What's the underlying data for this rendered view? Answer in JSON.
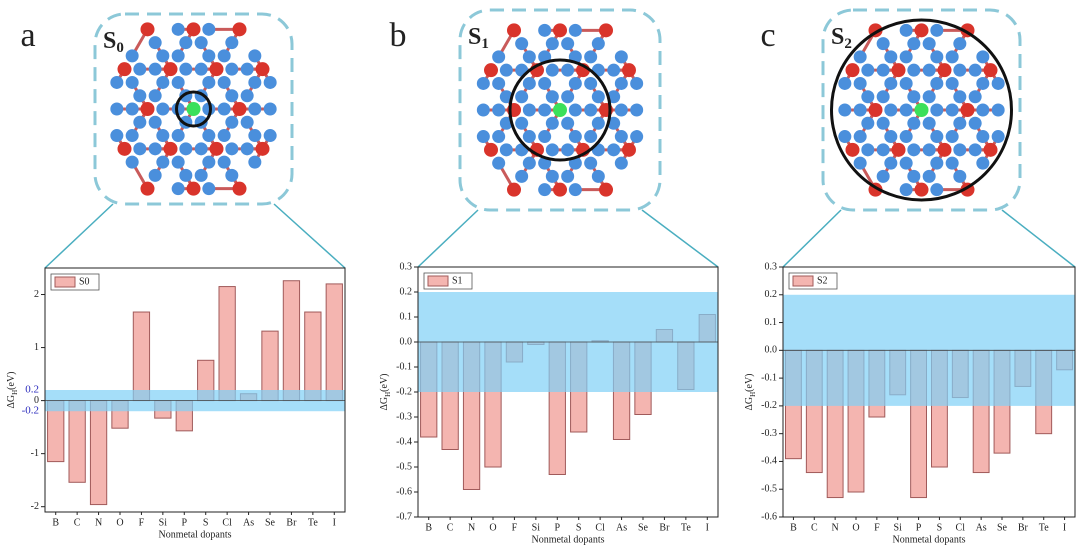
{
  "chart_data": [
    {
      "type": "bar",
      "panel": "a",
      "structure_label": "S",
      "structure_sub": "0",
      "categories": [
        "B",
        "C",
        "N",
        "O",
        "F",
        "Si",
        "P",
        "S",
        "Cl",
        "As",
        "Se",
        "Br",
        "Te",
        "I"
      ],
      "series": [
        {
          "name": "S0",
          "color": "#f4b5b0",
          "values": [
            -1.15,
            -1.54,
            -1.96,
            -0.52,
            1.67,
            -0.33,
            -0.57,
            0.76,
            2.15,
            0.13,
            1.31,
            2.26,
            1.67,
            2.2
          ]
        }
      ],
      "ylim": [
        -2.1,
        2.5
      ],
      "yticks": [
        -2,
        -1,
        0,
        1,
        2
      ],
      "band": [
        -0.2,
        0.2
      ],
      "band_color": "#7fd0f7",
      "band_ticks": [
        0.2,
        -0.2
      ],
      "xlabel": "Nonmetal dopants",
      "ylabel": "ΔG",
      "ylabel_sub": "H",
      "ylabel_unit": "(eV)"
    },
    {
      "type": "bar",
      "panel": "b",
      "structure_label": "S",
      "structure_sub": "1",
      "categories": [
        "B",
        "C",
        "N",
        "O",
        "F",
        "Si",
        "P",
        "S",
        "Cl",
        "As",
        "Se",
        "Br",
        "Te",
        "I"
      ],
      "series": [
        {
          "name": "S1",
          "color": "#f4b5b0",
          "values": [
            -0.38,
            -0.43,
            -0.59,
            -0.5,
            -0.08,
            -0.01,
            -0.53,
            -0.36,
            0.005,
            -0.39,
            -0.29,
            0.05,
            -0.19,
            0.11
          ]
        }
      ],
      "ylim": [
        -0.7,
        0.3
      ],
      "yticks": [
        0.3,
        0.2,
        0.1,
        {
          "value": 0,
          "label": "0.0"
        },
        -0.1,
        -0.2,
        -0.3,
        -0.4,
        -0.5,
        -0.6,
        -0.7
      ],
      "band": [
        -0.2,
        0.2
      ],
      "band_color": "#7fd0f7",
      "xlabel": "Nonmetal dopants",
      "ylabel": "ΔG",
      "ylabel_sub": "H",
      "ylabel_unit": "(eV)"
    },
    {
      "type": "bar",
      "panel": "c",
      "structure_label": "S",
      "structure_sub": "2",
      "categories": [
        "B",
        "C",
        "N",
        "O",
        "F",
        "Si",
        "P",
        "S",
        "Cl",
        "As",
        "Se",
        "Br",
        "Te",
        "I"
      ],
      "series": [
        {
          "name": "S2",
          "color": "#f4b5b0",
          "values": [
            -0.39,
            -0.44,
            -0.53,
            -0.51,
            -0.24,
            -0.16,
            -0.53,
            -0.42,
            -0.17,
            -0.44,
            -0.37,
            -0.13,
            -0.3,
            -0.07
          ]
        }
      ],
      "ylim": [
        -0.6,
        0.3
      ],
      "yticks": [
        0.3,
        0.2,
        0.1,
        {
          "value": 0,
          "label": "0.0"
        },
        -0.1,
        -0.2,
        -0.3,
        -0.4,
        -0.5,
        -0.6
      ],
      "band": [
        -0.2,
        0.2
      ],
      "band_color": "#7fd0f7",
      "xlabel": "Nonmetal dopants",
      "ylabel": "ΔG",
      "ylabel_sub": "H",
      "ylabel_unit": "(eV)"
    }
  ]
}
